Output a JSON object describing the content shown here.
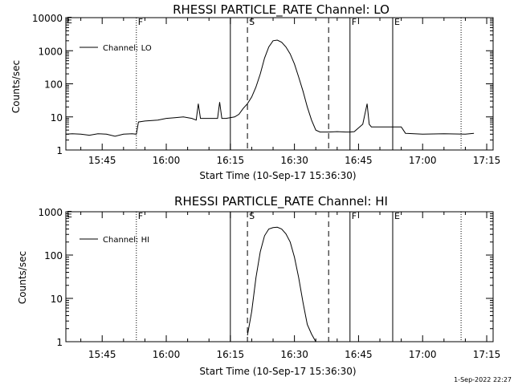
{
  "footer": {
    "timestamp": "1-Sep-2022 22:27"
  },
  "chart_data": [
    {
      "type": "line",
      "title": "RHESSI PARTICLE_RATE Channel: LO",
      "xlabel": "Start Time (10-Sep-17 15:36:30)",
      "ylabel": "Counts/sec",
      "yscale": "log",
      "xlim": [
        "15:36:30",
        "17:16:30"
      ],
      "ylim": [
        1,
        10000
      ],
      "x_ticks": [
        "15:45",
        "16:00",
        "16:15",
        "16:30",
        "16:45",
        "17:00",
        "17:15"
      ],
      "y_ticks": [
        "1",
        "10",
        "100",
        "1000",
        "10000"
      ],
      "legend": {
        "placement": "top-left",
        "entries": [
          "Channel: LO"
        ]
      },
      "series": [
        {
          "name": "Channel: LO",
          "x": [
            "15:36:30",
            "15:38",
            "15:40",
            "15:42",
            "15:44",
            "15:46",
            "15:48",
            "15:50",
            "15:52",
            "15:53",
            "15:53:30",
            "15:55",
            "15:58",
            "16:00",
            "16:02",
            "16:04",
            "16:06",
            "16:07",
            "16:07:30",
            "16:08",
            "16:10",
            "16:12",
            "16:12:30",
            "16:13",
            "16:14",
            "16:16",
            "16:17",
            "16:18",
            "16:19",
            "16:20",
            "16:21",
            "16:22",
            "16:23",
            "16:24",
            "16:25",
            "16:26",
            "16:27",
            "16:28",
            "16:29",
            "16:30",
            "16:31",
            "16:32",
            "16:33",
            "16:34",
            "16:35",
            "16:36",
            "16:38",
            "16:40",
            "16:42",
            "16:43",
            "16:44",
            "16:46",
            "16:47",
            "16:47:30",
            "16:48",
            "16:50",
            "16:52",
            "16:54",
            "16:55",
            "16:56",
            "16:58",
            "17:00",
            "17:05",
            "17:10",
            "17:12"
          ],
          "y": [
            3,
            3.1,
            3,
            2.8,
            3.1,
            3,
            2.6,
            3,
            3.1,
            3,
            7,
            7.5,
            8,
            9,
            9.5,
            10,
            9,
            8,
            25,
            9,
            9,
            9,
            28,
            9,
            9,
            10,
            12,
            18,
            25,
            40,
            80,
            200,
            600,
            1300,
            2000,
            2100,
            1800,
            1300,
            800,
            400,
            160,
            60,
            20,
            8,
            4,
            3.5,
            3.5,
            3.6,
            3.5,
            3.5,
            3.6,
            6,
            25,
            6,
            5,
            5,
            5,
            5,
            5,
            3.2,
            3.1,
            3,
            3.1,
            3,
            3.2
          ]
        }
      ],
      "vlines": [
        {
          "time": "15:53",
          "label": "F",
          "style": "dotted"
        },
        {
          "time": "16:15",
          "label": "",
          "style": "solid"
        },
        {
          "time": "16:19",
          "label": "S",
          "style": "dashed"
        },
        {
          "time": "16:38",
          "label": "",
          "style": "dashed"
        },
        {
          "time": "16:43",
          "label": "F",
          "style": "solid"
        },
        {
          "time": "16:53",
          "label": "E",
          "style": "solid"
        },
        {
          "time": "17:09",
          "label": "",
          "style": "dotted"
        }
      ],
      "edge_label": "E"
    },
    {
      "type": "line",
      "title": "RHESSI PARTICLE_RATE Channel: HI",
      "xlabel": "Start Time (10-Sep-17 15:36:30)",
      "ylabel": "Counts/sec",
      "yscale": "log",
      "xlim": [
        "15:36:30",
        "17:16:30"
      ],
      "ylim": [
        1,
        1000
      ],
      "x_ticks": [
        "15:45",
        "16:00",
        "16:15",
        "16:30",
        "16:45",
        "17:00",
        "17:15"
      ],
      "y_ticks": [
        "1",
        "10",
        "100",
        "1000"
      ],
      "legend": {
        "placement": "top-left",
        "entries": [
          "Channel: HI"
        ]
      },
      "series": [
        {
          "name": "Channel: HI",
          "x": [
            "16:19",
            "16:20",
            "16:21",
            "16:22",
            "16:23",
            "16:24",
            "16:25",
            "16:26",
            "16:27",
            "16:28",
            "16:29",
            "16:30",
            "16:31",
            "16:32",
            "16:33",
            "16:34",
            "16:35"
          ],
          "y": [
            1.4,
            5,
            30,
            120,
            280,
            400,
            430,
            440,
            400,
            310,
            200,
            90,
            30,
            8,
            2.5,
            1.5,
            1
          ]
        }
      ],
      "vlines": [
        {
          "time": "15:53",
          "label": "F",
          "style": "dotted"
        },
        {
          "time": "16:15",
          "label": "",
          "style": "solid"
        },
        {
          "time": "16:19",
          "label": "S",
          "style": "dashed"
        },
        {
          "time": "16:38",
          "label": "",
          "style": "dashed"
        },
        {
          "time": "16:43",
          "label": "F",
          "style": "solid"
        },
        {
          "time": "16:53",
          "label": "E",
          "style": "solid"
        },
        {
          "time": "17:09",
          "label": "",
          "style": "dotted"
        }
      ],
      "edge_label": "E"
    }
  ]
}
